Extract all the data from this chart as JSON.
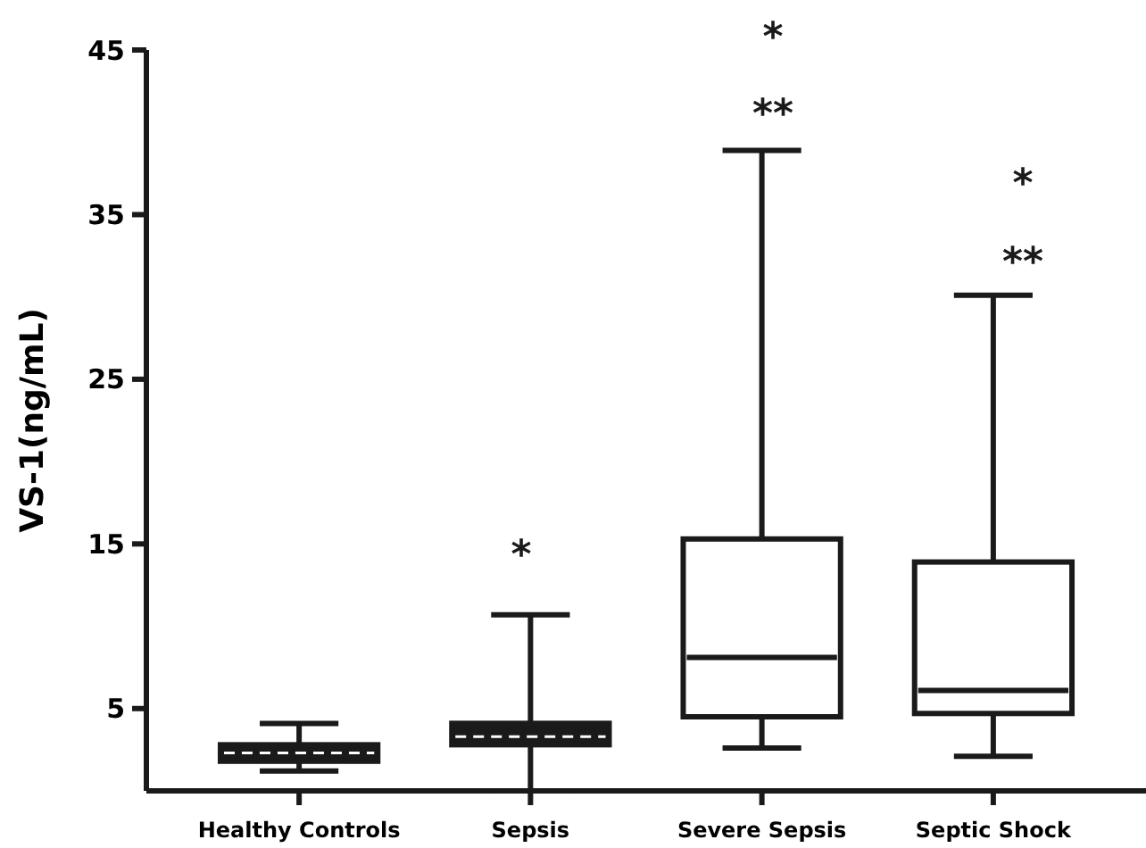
{
  "chart_data": {
    "type": "box",
    "ylabel": "VS-1(ng/mL)",
    "categories": [
      "Healthy Controls",
      "Sepsis",
      "Severe Sepsis",
      "Septic Shock"
    ],
    "boxes": [
      {
        "low": 1.2,
        "q1": 1.8,
        "median": 2.3,
        "q3": 2.8,
        "high": 4.1
      },
      {
        "low": 0,
        "q1": 2.8,
        "median": 3.3,
        "q3": 4.1,
        "high": 10.7
      },
      {
        "low": 2.6,
        "q1": 4.5,
        "median": 8.1,
        "q3": 15.3,
        "high": 38.9
      },
      {
        "low": 2.1,
        "q1": 4.7,
        "median": 6.1,
        "q3": 13.9,
        "high": 30.1
      }
    ],
    "colors": [
      "#1a1a1a",
      "#1a1a1a",
      "#ffffff",
      "#ffffff"
    ],
    "ylim": [
      0,
      45
    ],
    "yticks": [
      5,
      15,
      25,
      35,
      45
    ],
    "annotations": [
      "*",
      "**",
      "*",
      "**",
      "*"
    ]
  }
}
